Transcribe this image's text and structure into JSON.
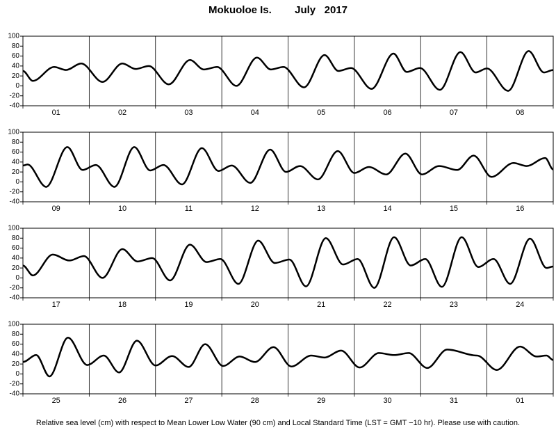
{
  "title": "Mokuoloe Is.        July   2017",
  "note": "Relative sea level (cm) with respect to Mean Lower Low Water (90 cm) and Local Standard Time (LST = GMT −10 hr). Please use with caution.",
  "chart_data": [
    {
      "type": "line",
      "categories": [
        "01",
        "02",
        "03",
        "04",
        "05",
        "06",
        "07",
        "08"
      ],
      "x": [
        0,
        0.15,
        0.47,
        0.65,
        0.88,
        1.2,
        1.5,
        1.7,
        1.9,
        2.2,
        2.52,
        2.73,
        2.93,
        3.22,
        3.53,
        3.74,
        3.93,
        4.24,
        4.55,
        4.76,
        4.95,
        5.26,
        5.59,
        5.79,
        5.99,
        6.29,
        6.6,
        6.83,
        7.0,
        7.32,
        7.63,
        7.86,
        8
      ],
      "values": [
        30,
        10,
        38,
        32,
        45,
        8,
        45,
        34,
        40,
        3,
        52,
        33,
        38,
        0,
        57,
        33,
        38,
        -3,
        62,
        30,
        36,
        -6,
        65,
        28,
        36,
        -8,
        68,
        27,
        35,
        -10,
        70,
        27,
        32
      ],
      "color": "#000000",
      "xlim": [
        0,
        8
      ],
      "xticks": [
        0,
        1,
        2,
        3,
        4,
        5,
        6,
        7,
        8
      ],
      "ylim": [
        -40,
        100
      ],
      "yticks": [
        -40,
        -20,
        0,
        20,
        40,
        60,
        80,
        100
      ]
    },
    {
      "type": "line",
      "categories": [
        "09",
        "10",
        "11",
        "12",
        "13",
        "14",
        "15",
        "16"
      ],
      "x": [
        0,
        0.07,
        0.35,
        0.67,
        0.9,
        1.1,
        1.38,
        1.68,
        1.92,
        2.12,
        2.4,
        2.7,
        2.95,
        3.15,
        3.43,
        3.73,
        3.97,
        4.18,
        4.45,
        4.75,
        5.0,
        5.22,
        5.48,
        5.77,
        6.02,
        6.28,
        6.55,
        6.8,
        7.07,
        7.4,
        7.6,
        7.88,
        8
      ],
      "values": [
        33,
        35,
        -10,
        70,
        24,
        34,
        -10,
        70,
        23,
        34,
        -5,
        68,
        22,
        33,
        -2,
        65,
        20,
        32,
        5,
        62,
        18,
        30,
        15,
        57,
        15,
        32,
        24,
        53,
        10,
        38,
        32,
        48,
        25
      ],
      "color": "#000000",
      "xlim": [
        0,
        8
      ],
      "xticks": [
        0,
        1,
        2,
        3,
        4,
        5,
        6,
        7,
        8
      ],
      "ylim": [
        -40,
        100
      ],
      "yticks": [
        -40,
        -20,
        0,
        20,
        40,
        60,
        80,
        100
      ]
    },
    {
      "type": "line",
      "categories": [
        "17",
        "18",
        "19",
        "20",
        "21",
        "22",
        "23",
        "24"
      ],
      "x": [
        0,
        0.15,
        0.45,
        0.7,
        0.92,
        1.2,
        1.5,
        1.73,
        1.95,
        2.22,
        2.52,
        2.77,
        2.98,
        3.25,
        3.55,
        3.8,
        4.02,
        4.27,
        4.57,
        4.83,
        5.05,
        5.3,
        5.6,
        5.85,
        6.07,
        6.32,
        6.62,
        6.87,
        7.1,
        7.35,
        7.65,
        7.9,
        8
      ],
      "values": [
        25,
        5,
        47,
        35,
        44,
        0,
        58,
        33,
        40,
        -5,
        67,
        32,
        38,
        -12,
        75,
        30,
        37,
        -17,
        80,
        27,
        38,
        -20,
        82,
        25,
        38,
        -18,
        82,
        22,
        38,
        -12,
        79,
        20,
        23
      ],
      "color": "#000000",
      "xlim": [
        0,
        8
      ],
      "xticks": [
        0,
        1,
        2,
        3,
        4,
        5,
        6,
        7,
        8
      ],
      "ylim": [
        -40,
        100
      ],
      "yticks": [
        -40,
        -20,
        0,
        20,
        40,
        60,
        80,
        100
      ]
    },
    {
      "type": "line",
      "categories": [
        "25",
        "26",
        "27",
        "28",
        "29",
        "30",
        "31",
        "01"
      ],
      "x": [
        0,
        0.2,
        0.4,
        0.68,
        0.97,
        1.22,
        1.45,
        1.72,
        2.0,
        2.25,
        2.5,
        2.75,
        3.02,
        3.27,
        3.5,
        3.78,
        4.05,
        4.35,
        4.55,
        4.8,
        5.08,
        5.37,
        5.6,
        5.82,
        6.1,
        6.4,
        6.85,
        7.15,
        7.5,
        7.75,
        7.9,
        8
      ],
      "values": [
        24,
        38,
        -5,
        73,
        18,
        37,
        3,
        67,
        17,
        36,
        14,
        60,
        16,
        35,
        24,
        54,
        15,
        37,
        33,
        47,
        13,
        42,
        38,
        42,
        12,
        49,
        37,
        8,
        55,
        35,
        37,
        28
      ],
      "color": "#000000",
      "xlim": [
        0,
        8
      ],
      "xticks": [
        0,
        1,
        2,
        3,
        4,
        5,
        6,
        7,
        8
      ],
      "ylim": [
        -40,
        100
      ],
      "yticks": [
        -40,
        -20,
        0,
        20,
        40,
        60,
        80,
        100
      ]
    }
  ]
}
